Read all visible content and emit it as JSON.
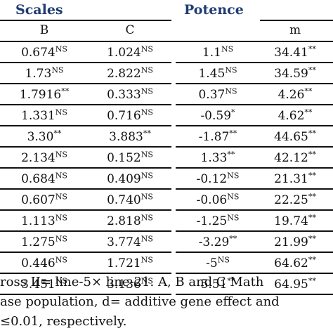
{
  "header": {
    "scales_title": "Scales",
    "potence_title": "Potence",
    "columns": [
      "B",
      "C",
      "",
      "m"
    ]
  },
  "rows": [
    [
      [
        "0.674",
        "NS"
      ],
      [
        "1.024",
        "NS"
      ],
      [
        "1.1",
        "NS"
      ],
      [
        "34.41",
        "**"
      ]
    ],
    [
      [
        "1.73",
        "NS"
      ],
      [
        "2.822",
        "NS"
      ],
      [
        "1.45",
        "NS"
      ],
      [
        "34.59",
        "**"
      ]
    ],
    [
      [
        "1.7916",
        "**"
      ],
      [
        "0.333",
        "NS"
      ],
      [
        "0.37",
        "NS"
      ],
      [
        "4.26",
        "**"
      ]
    ],
    [
      [
        "1.331",
        "NS"
      ],
      [
        "0.716",
        "NS"
      ],
      [
        "-0.59",
        "*"
      ],
      [
        "4.62",
        "**"
      ]
    ],
    [
      [
        "3.30",
        "**"
      ],
      [
        "3.883",
        "**"
      ],
      [
        "-1.87",
        "**"
      ],
      [
        "44.65",
        "**"
      ]
    ],
    [
      [
        "2.134",
        "NS"
      ],
      [
        "0.152",
        "NS"
      ],
      [
        "1.33",
        "**"
      ],
      [
        "42.12",
        "**"
      ]
    ],
    [
      [
        "0.684",
        "NS"
      ],
      [
        "0.409",
        "NS"
      ],
      [
        "-0.12",
        "NS"
      ],
      [
        "21.31",
        "**"
      ]
    ],
    [
      [
        "0.607",
        "NS"
      ],
      [
        "0.740",
        "NS"
      ],
      [
        "-0.06",
        "NS"
      ],
      [
        "22.25",
        "**"
      ]
    ],
    [
      [
        "1.113",
        "NS"
      ],
      [
        "2.818",
        "NS"
      ],
      [
        "-1.25",
        "NS"
      ],
      [
        "19.74",
        "**"
      ]
    ],
    [
      [
        "1.275",
        "NS"
      ],
      [
        "3.774",
        "NS"
      ],
      [
        "-3.29",
        "**"
      ],
      [
        "21.99",
        "**"
      ]
    ],
    [
      [
        "0.446",
        "NS"
      ],
      [
        "1.721",
        "NS"
      ],
      [
        "-5",
        "NS"
      ],
      [
        "64.62",
        "**"
      ]
    ],
    [
      [
        "3.451",
        "NS"
      ],
      [
        "3.136",
        "NS"
      ],
      [
        "5.51",
        "**"
      ],
      [
        "64.95",
        "**"
      ]
    ]
  ],
  "footnote": {
    "line1": "ross II= line-5× line-21.  A, B and C Math",
    "line2": "ase population, d= additive gene effect and",
    "line3": "≤0.01, respectively."
  }
}
